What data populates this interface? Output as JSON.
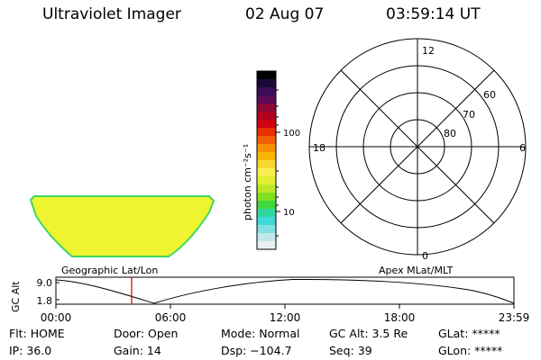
{
  "header": {
    "instrument": "Ultraviolet Imager",
    "date": "02 Aug 07",
    "time": "03:59:14 UT"
  },
  "colorbar": {
    "unit": "photon cm⁻²s⁻¹",
    "ticks": [
      "100",
      "10"
    ],
    "colors": [
      "#000000",
      "#1a0a3a",
      "#3b0a5a",
      "#5c0a55",
      "#8a0a3a",
      "#b00020",
      "#d00010",
      "#e83000",
      "#f06000",
      "#f89000",
      "#f8b800",
      "#f8d830",
      "#f8f050",
      "#e0f030",
      "#b8e828",
      "#80e020",
      "#40d840",
      "#30d8a0",
      "#40d8d8",
      "#80e0e0",
      "#c0e8e8",
      "#e8f0f0"
    ]
  },
  "polar": {
    "mlt_labels": [
      "12",
      "18",
      "6",
      "0"
    ],
    "lat_labels": [
      "60",
      "70",
      "80"
    ]
  },
  "image_frame": {
    "fill_color": "#eef530",
    "edge_color": "#40d860"
  },
  "timeline": {
    "label_left": "Geographic Lat/Lon",
    "label_right": "Apex MLat/MLT",
    "y_axis_label": "GC Alt",
    "y_ticks": [
      "9.0",
      "1.8"
    ],
    "x_ticks": [
      "00:00",
      "06:00",
      "12:00",
      "18:00",
      "23:59"
    ],
    "marker_color": "#cc0000"
  },
  "status": {
    "row1": {
      "flt": "Flt: HOME",
      "door": "Door: Open",
      "mode": "Mode: Normal",
      "gcalt": "GC Alt: 3.5 Re",
      "glat": "GLat: *****"
    },
    "row2": {
      "ip": "IP: 36.0",
      "gain": "Gain: 14",
      "dsp": "Dsp: −104.7",
      "seq": "Seq: 39",
      "glon": "GLon: *****"
    }
  }
}
